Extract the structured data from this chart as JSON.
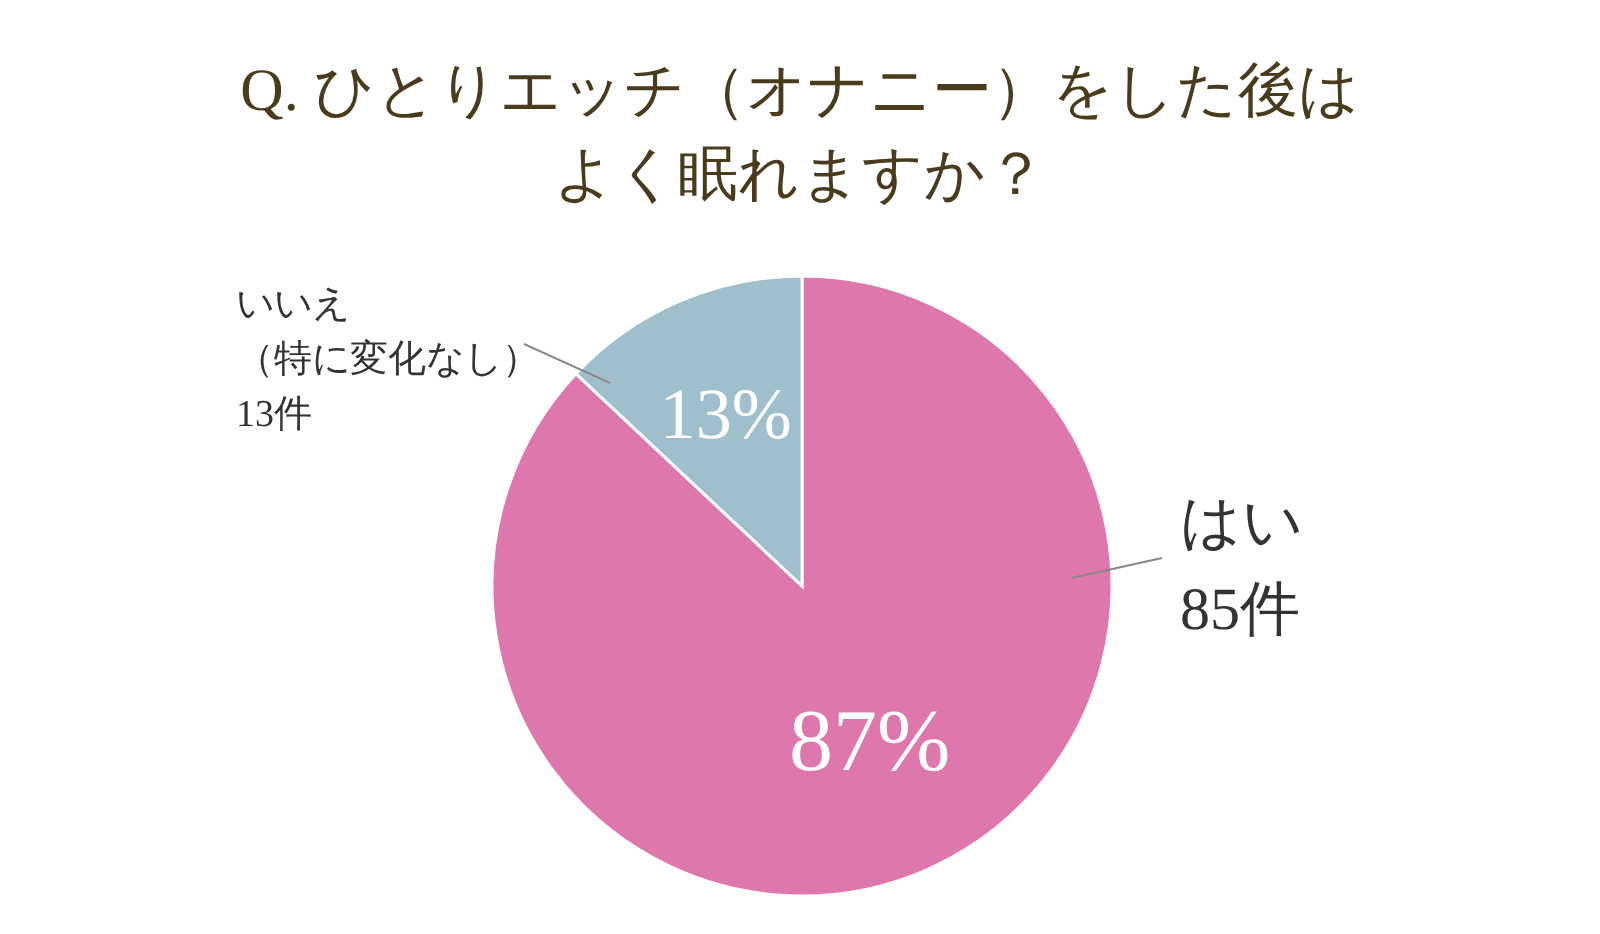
{
  "chart_data": {
    "type": "pie",
    "title": "Q. ひとりエッチ（オナニー）をした後はよく眠れますか？",
    "categories": [
      "はい85件",
      "いいえ（特に変化なし）13件"
    ],
    "values": [
      87,
      13
    ],
    "value_labels": [
      "87%",
      "13%"
    ],
    "colors": [
      "#de78ac",
      "#a0bfcc"
    ]
  }
}
